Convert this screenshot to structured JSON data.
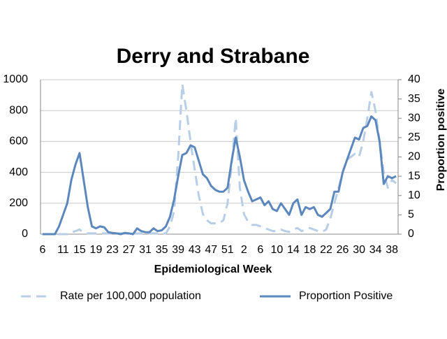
{
  "chart_data": {
    "type": "line",
    "title": "Derry and Strabane",
    "x_label": "Epidemiological Week",
    "y2_label": "Proportion positive",
    "categories": [
      6,
      null,
      null,
      null,
      null,
      11,
      null,
      null,
      null,
      15,
      null,
      null,
      null,
      19,
      null,
      null,
      null,
      23,
      null,
      null,
      null,
      27,
      null,
      null,
      null,
      31,
      null,
      null,
      null,
      35,
      null,
      null,
      null,
      39,
      null,
      null,
      null,
      43,
      null,
      null,
      null,
      47,
      null,
      null,
      null,
      51,
      null,
      null,
      null,
      2,
      null,
      null,
      null,
      6,
      null,
      null,
      null,
      10,
      null,
      null,
      null,
      14,
      null,
      null,
      null,
      18,
      null,
      null,
      null,
      22,
      null,
      null,
      null,
      26,
      null,
      null,
      null,
      30,
      null,
      null,
      null,
      34,
      null,
      null,
      null,
      38,
      null
    ],
    "series": [
      {
        "name": "Rate per 100,000 population",
        "color": "#b8cde6",
        "dashed": true,
        "axis": "y",
        "values": [
          0,
          0,
          0,
          0,
          0,
          0,
          0,
          10,
          20,
          30,
          10,
          5,
          5,
          5,
          5,
          5,
          5,
          5,
          5,
          5,
          5,
          5,
          5,
          5,
          5,
          5,
          5,
          5,
          5,
          5,
          5,
          50,
          150,
          500,
          970,
          800,
          600,
          420,
          250,
          130,
          90,
          70,
          70,
          70,
          90,
          200,
          450,
          750,
          300,
          130,
          80,
          60,
          60,
          50,
          40,
          30,
          20,
          20,
          30,
          20,
          15,
          30,
          40,
          20,
          30,
          40,
          30,
          20,
          15,
          30,
          100,
          200,
          300,
          400,
          480,
          500,
          520,
          500,
          600,
          750,
          920,
          800,
          600,
          400,
          300,
          350,
          330
        ]
      },
      {
        "name": "Proportion Positive",
        "color": "#5b87bd",
        "dashed": false,
        "axis": "y2",
        "values": [
          0,
          0,
          0,
          0,
          2,
          5,
          8,
          14,
          18,
          21,
          14,
          7,
          2,
          1.5,
          2,
          1.8,
          0.5,
          0.3,
          0.2,
          0,
          0.3,
          0.2,
          0,
          1.5,
          0.8,
          0.5,
          0.5,
          1.5,
          0.8,
          1,
          2,
          4.5,
          9,
          15,
          20.5,
          21,
          23,
          22.5,
          19,
          15.5,
          14.5,
          12.5,
          11.5,
          11,
          11,
          12,
          19,
          25,
          20,
          14,
          11,
          8.5,
          9,
          9.5,
          7.5,
          8.5,
          6.5,
          6,
          8,
          6.5,
          5,
          8,
          9,
          5,
          7,
          6.5,
          7,
          5,
          4.5,
          5.5,
          6.5,
          11,
          11,
          16,
          19,
          22,
          25,
          24.5,
          27.5,
          28,
          30.5,
          29.5,
          24,
          13,
          15,
          14.5,
          15
        ]
      }
    ],
    "ylim": [
      0,
      1000
    ],
    "yticks": [
      0,
      200,
      400,
      600,
      800,
      1000
    ],
    "y2lim": [
      0,
      40
    ],
    "y2ticks": [
      0,
      5,
      10,
      15,
      20,
      25,
      30,
      35,
      40
    ],
    "grid": true
  }
}
